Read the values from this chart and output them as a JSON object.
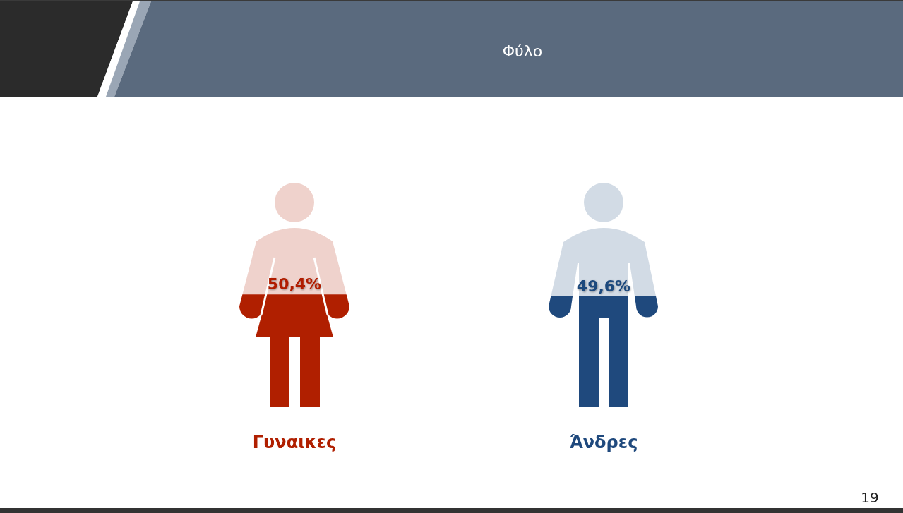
{
  "chart_data": {
    "type": "bar",
    "title": "Φύλο",
    "categories": [
      "Γυναικες",
      "Άνδρες"
    ],
    "values": [
      50.4,
      49.6
    ],
    "colors": [
      "#b01f00",
      "#1f497d"
    ],
    "value_labels": [
      "50,4%",
      "49,6%"
    ],
    "tick_labels": "x",
    "annotations": [
      "19"
    ]
  }
}
